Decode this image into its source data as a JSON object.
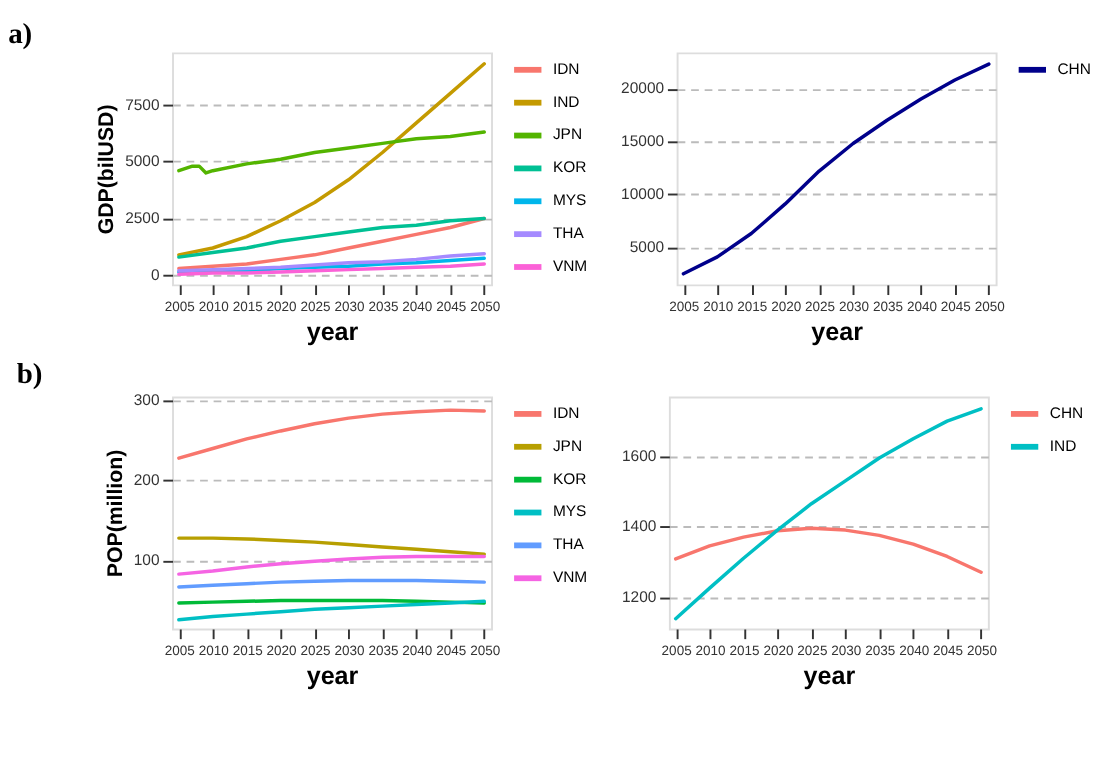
{
  "chart_data": [
    {
      "type": "line",
      "title": "a)",
      "xlabel": "year",
      "ylabel": "GDP(bilUSD)",
      "x": [
        2005,
        2010,
        2015,
        2020,
        2025,
        2030,
        2035,
        2040,
        2045,
        2050
      ],
      "series": [
        {
          "name": "IDN",
          "color": "#f8766d",
          "values": [
            300,
            400,
            500,
            700,
            900,
            1200,
            1500,
            1800,
            2100,
            2500
          ]
        },
        {
          "name": "IND",
          "color": "#c49a00",
          "values": [
            900,
            1200,
            1700,
            2400,
            3200,
            4200,
            5400,
            6700,
            8000,
            9300
          ]
        },
        {
          "name": "JPN",
          "color": "#53b400",
          "x": [
            2005,
            2007,
            2008,
            2009,
            2010,
            2015,
            2020,
            2025,
            2030,
            2035,
            2040,
            2045,
            2050
          ],
          "values": [
            4600,
            4800,
            4800,
            4500,
            4600,
            4900,
            5100,
            5400,
            5600,
            5800,
            6000,
            6100,
            6300
          ]
        },
        {
          "name": "KOR",
          "color": "#00c094",
          "values": [
            800,
            1000,
            1200,
            1500,
            1700,
            1900,
            2100,
            2200,
            2400,
            2500
          ]
        },
        {
          "name": "MYS",
          "color": "#00b6eb",
          "values": [
            150,
            150,
            200,
            300,
            350,
            400,
            500,
            550,
            650,
            750
          ]
        },
        {
          "name": "THA",
          "color": "#a58aff",
          "values": [
            200,
            250,
            300,
            350,
            450,
            550,
            600,
            700,
            850,
            950
          ]
        },
        {
          "name": "VNM",
          "color": "#fb61d7",
          "values": [
            50,
            100,
            100,
            150,
            200,
            250,
            300,
            350,
            400,
            500
          ]
        }
      ],
      "xlim": [
        2004,
        2051
      ],
      "xticks": [
        2005,
        2010,
        2015,
        2020,
        2025,
        2030,
        2035,
        2040,
        2045,
        2050
      ],
      "ylim": [
        -400,
        9800
      ],
      "yticks": [
        0,
        2500,
        5000,
        7500
      ],
      "grid": "y",
      "legend": "right"
    },
    {
      "type": "line",
      "xlabel": "year",
      "x": [
        2005,
        2010,
        2015,
        2020,
        2025,
        2030,
        2035,
        2040,
        2045,
        2050
      ],
      "series": [
        {
          "name": "CHN",
          "color": "#00008b",
          "values": [
            2500,
            4100,
            6300,
            9100,
            12200,
            14800,
            17000,
            19000,
            20800,
            22300
          ]
        }
      ],
      "xlim": [
        2004,
        2051
      ],
      "xticks": [
        2005,
        2010,
        2015,
        2020,
        2025,
        2030,
        2035,
        2040,
        2045,
        2050
      ],
      "ylim": [
        1500,
        23400
      ],
      "yticks": [
        5000,
        10000,
        15000,
        20000
      ],
      "grid": "y",
      "legend": "right"
    },
    {
      "type": "line",
      "title": "b)",
      "xlabel": "year",
      "ylabel": "POP(million)",
      "x": [
        2005,
        2010,
        2015,
        2020,
        2025,
        2030,
        2035,
        2040,
        2045,
        2050
      ],
      "series": [
        {
          "name": "IDN",
          "color": "#f8766d",
          "values": [
            228,
            240,
            252,
            262,
            271,
            278,
            283,
            286,
            288,
            287
          ]
        },
        {
          "name": "JPN",
          "color": "#b79f00",
          "values": [
            128,
            128,
            127,
            125,
            123,
            120,
            117,
            114,
            111,
            108
          ]
        },
        {
          "name": "KOR",
          "color": "#00ba38",
          "values": [
            47,
            48,
            49,
            50,
            50,
            50,
            50,
            49,
            48,
            47
          ]
        },
        {
          "name": "MYS",
          "color": "#00bfc4",
          "values": [
            26,
            30,
            33,
            36,
            39,
            41,
            43,
            45,
            47,
            49
          ]
        },
        {
          "name": "THA",
          "color": "#619cff",
          "values": [
            67,
            69,
            71,
            73,
            74,
            75,
            75,
            75,
            74,
            73
          ]
        },
        {
          "name": "VNM",
          "color": "#f564e3",
          "values": [
            83,
            87,
            92,
            96,
            99,
            102,
            104,
            105,
            105,
            105
          ]
        }
      ],
      "xlim": [
        2004,
        2051
      ],
      "xticks": [
        2005,
        2010,
        2015,
        2020,
        2025,
        2030,
        2035,
        2040,
        2045,
        2050
      ],
      "ylim": [
        15,
        305
      ],
      "yticks": [
        100,
        200,
        300
      ],
      "grid": "y",
      "legend": "right"
    },
    {
      "type": "line",
      "xlabel": "year",
      "x": [
        2005,
        2010,
        2015,
        2020,
        2025,
        2030,
        2035,
        2040,
        2045,
        2050
      ],
      "series": [
        {
          "name": "CHN",
          "color": "#f8766d",
          "values": [
            1308,
            1345,
            1370,
            1388,
            1395,
            1390,
            1375,
            1350,
            1315,
            1270
          ]
        },
        {
          "name": "IND",
          "color": "#00bfc4",
          "values": [
            1138,
            1225,
            1310,
            1390,
            1465,
            1530,
            1595,
            1650,
            1700,
            1735
          ]
        }
      ],
      "xlim": [
        2004,
        2051
      ],
      "xticks": [
        2005,
        2010,
        2015,
        2020,
        2025,
        2030,
        2035,
        2040,
        2045,
        2050
      ],
      "ylim": [
        1110,
        1770
      ],
      "yticks": [
        1200,
        1400,
        1600
      ],
      "grid": "y",
      "legend": "right"
    }
  ]
}
